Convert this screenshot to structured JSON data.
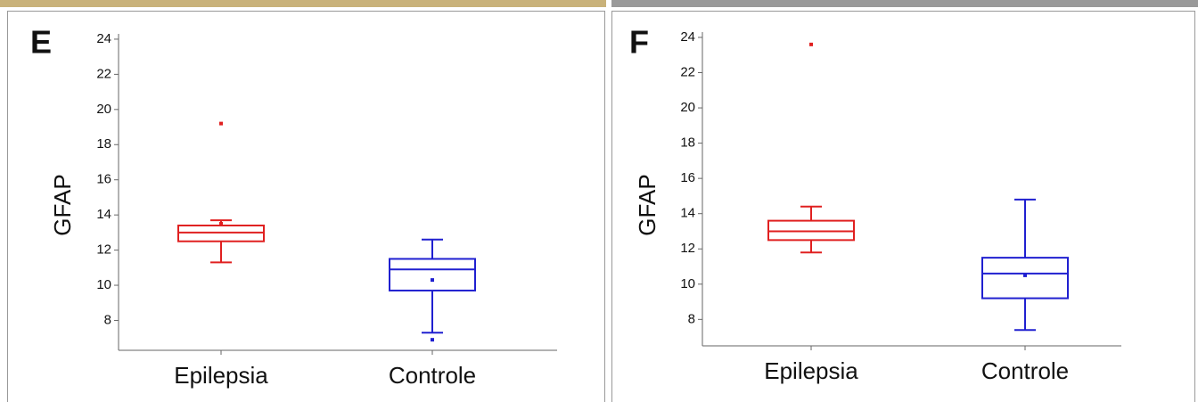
{
  "chart_data": [
    {
      "type": "box",
      "panel_label": "E",
      "ylabel": "GFAP",
      "categories": [
        "Epilepsia",
        "Controle"
      ],
      "ylim": [
        6.3,
        24.2
      ],
      "yticks": [
        8,
        10,
        12,
        14,
        16,
        18,
        20,
        22,
        24
      ],
      "boxes": [
        {
          "color": "#e02020",
          "low": 11.3,
          "q1": 12.5,
          "median": 13.0,
          "q3": 13.4,
          "high": 13.7,
          "mean": 13.5,
          "outliers": [
            19.2
          ]
        },
        {
          "color": "#2020d0",
          "low": 7.3,
          "q1": 9.7,
          "median": 10.9,
          "q3": 11.5,
          "high": 12.6,
          "mean": 10.3,
          "outliers": [
            6.9
          ]
        }
      ]
    },
    {
      "type": "box",
      "panel_label": "F",
      "ylabel": "GFAP",
      "categories": [
        "Epilepsia",
        "Controle"
      ],
      "ylim": [
        6.5,
        24.2
      ],
      "yticks": [
        8,
        10,
        12,
        14,
        16,
        18,
        20,
        22,
        24
      ],
      "boxes": [
        {
          "color": "#e02020",
          "low": 11.8,
          "q1": 12.5,
          "median": 13.0,
          "q3": 13.6,
          "high": 14.4,
          "outliers": [
            23.6
          ]
        },
        {
          "color": "#2020d0",
          "low": 7.4,
          "q1": 9.2,
          "median": 10.6,
          "q3": 11.5,
          "high": 14.8,
          "mean": 10.5,
          "outliers": []
        }
      ]
    }
  ]
}
